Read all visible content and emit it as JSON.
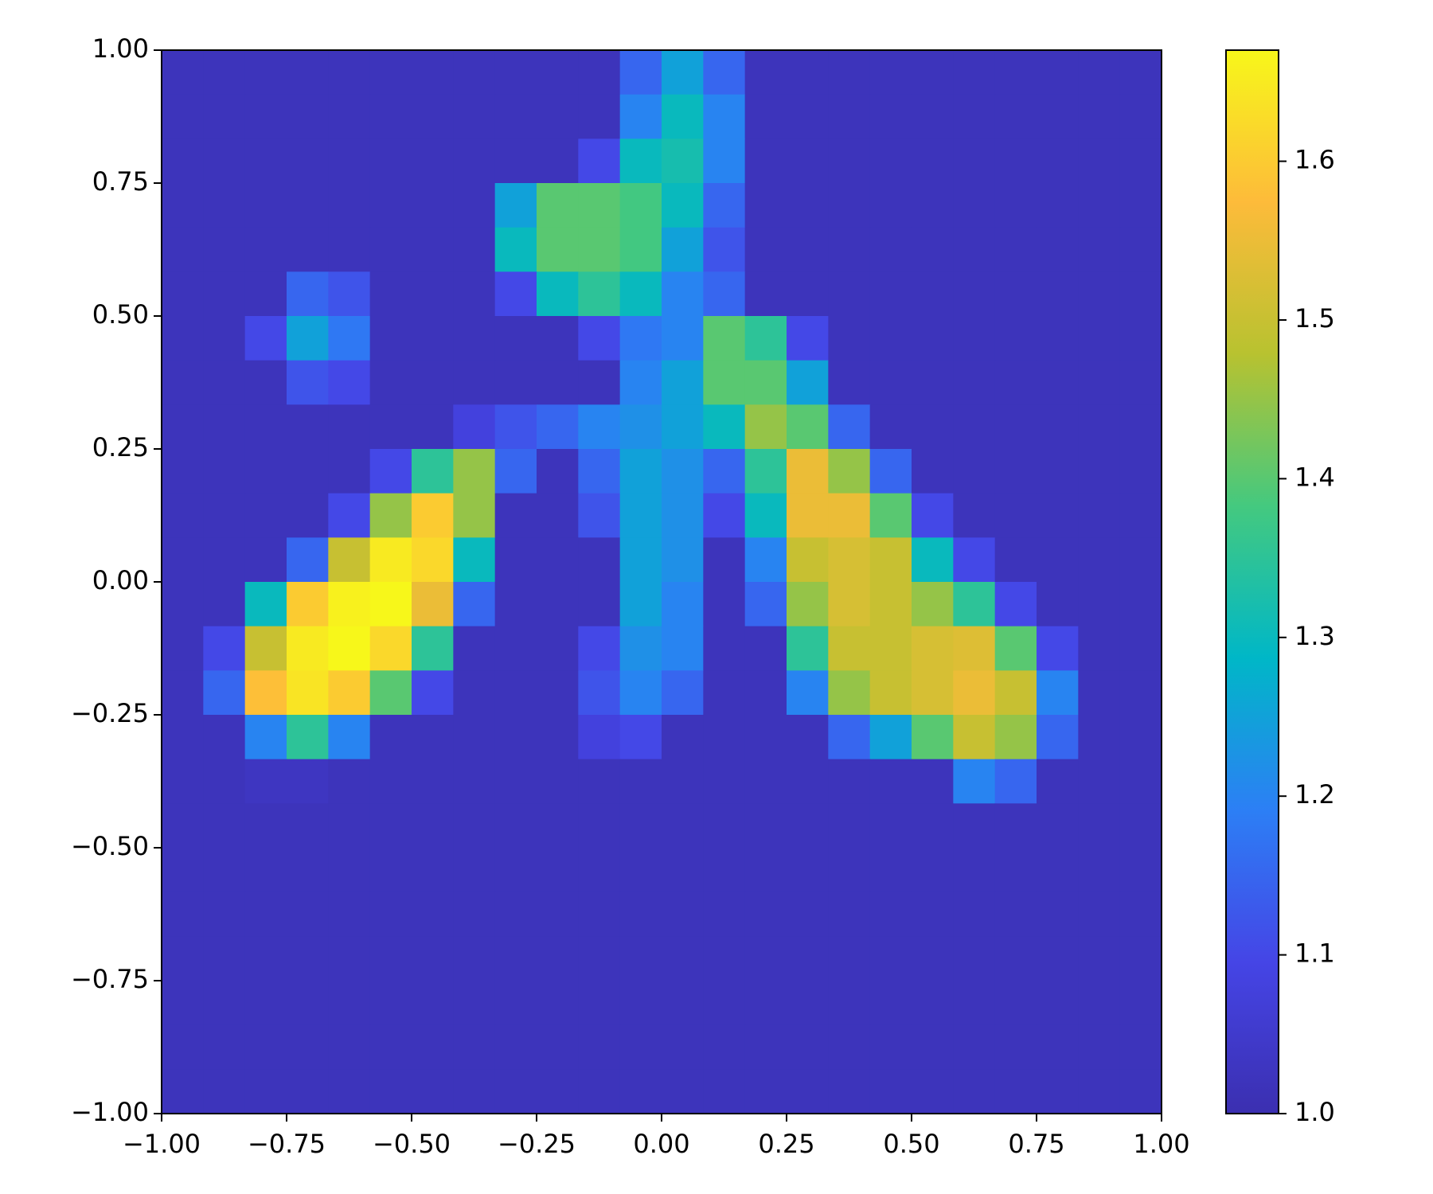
{
  "chart_data": {
    "type": "heatmap",
    "xlim": [
      -1,
      1
    ],
    "ylim": [
      -1,
      1
    ],
    "xticks": [
      {
        "value": -1,
        "label": "−1.00"
      },
      {
        "value": -0.75,
        "label": "−0.75"
      },
      {
        "value": -0.5,
        "label": "−0.50"
      },
      {
        "value": -0.25,
        "label": "−0.25"
      },
      {
        "value": 0,
        "label": "0.00"
      },
      {
        "value": 0.25,
        "label": "0.25"
      },
      {
        "value": 0.5,
        "label": "0.50"
      },
      {
        "value": 0.75,
        "label": "0.75"
      },
      {
        "value": 1,
        "label": "1.00"
      }
    ],
    "yticks": [
      {
        "value": -1,
        "label": "−1.00"
      },
      {
        "value": -0.75,
        "label": "−0.75"
      },
      {
        "value": -0.5,
        "label": "−0.50"
      },
      {
        "value": -0.25,
        "label": "−0.25"
      },
      {
        "value": 0,
        "label": "0.00"
      },
      {
        "value": 0.25,
        "label": "0.25"
      },
      {
        "value": 0.5,
        "label": "0.50"
      },
      {
        "value": 0.75,
        "label": "0.75"
      },
      {
        "value": 1,
        "label": "1.00"
      }
    ],
    "zlim": [
      1,
      1.67
    ],
    "zticks": [
      {
        "value": 1,
        "label": "1.0"
      },
      1.1,
      1.2,
      1.3,
      1.4,
      1.5,
      1.6
    ],
    "colormap": [
      "#3b2fb0",
      "#4545e6",
      "#2c7ff5",
      "#00b7c7",
      "#44c97f",
      "#b8c230",
      "#fdbb3a",
      "#f7f71a"
    ],
    "z": [
      [
        1.02,
        1.02,
        1.02,
        1.02,
        1.02,
        1.02,
        1.02,
        1.02,
        1.02,
        1.02,
        1.02,
        1.15,
        1.25,
        1.15,
        1.02,
        1.02,
        1.02,
        1.02,
        1.02,
        1.02,
        1.02,
        1.02,
        1.02,
        1.02
      ],
      [
        1.02,
        1.02,
        1.02,
        1.02,
        1.02,
        1.02,
        1.02,
        1.02,
        1.02,
        1.02,
        1.02,
        1.2,
        1.3,
        1.2,
        1.02,
        1.02,
        1.02,
        1.02,
        1.02,
        1.02,
        1.02,
        1.02,
        1.02,
        1.02
      ],
      [
        1.02,
        1.02,
        1.02,
        1.02,
        1.02,
        1.02,
        1.02,
        1.02,
        1.02,
        1.02,
        1.1,
        1.3,
        1.32,
        1.2,
        1.02,
        1.02,
        1.02,
        1.02,
        1.02,
        1.02,
        1.02,
        1.02,
        1.02,
        1.02
      ],
      [
        1.02,
        1.02,
        1.02,
        1.02,
        1.02,
        1.02,
        1.02,
        1.02,
        1.25,
        1.4,
        1.4,
        1.38,
        1.3,
        1.15,
        1.02,
        1.02,
        1.02,
        1.02,
        1.02,
        1.02,
        1.02,
        1.02,
        1.02,
        1.02
      ],
      [
        1.02,
        1.02,
        1.02,
        1.02,
        1.02,
        1.02,
        1.02,
        1.02,
        1.3,
        1.4,
        1.4,
        1.38,
        1.25,
        1.12,
        1.02,
        1.02,
        1.02,
        1.02,
        1.02,
        1.02,
        1.02,
        1.02,
        1.02,
        1.02
      ],
      [
        1.02,
        1.02,
        1.02,
        1.15,
        1.12,
        1.02,
        1.02,
        1.02,
        1.1,
        1.3,
        1.35,
        1.3,
        1.2,
        1.15,
        1.02,
        1.02,
        1.02,
        1.02,
        1.02,
        1.02,
        1.02,
        1.02,
        1.02,
        1.02
      ],
      [
        1.02,
        1.02,
        1.1,
        1.25,
        1.18,
        1.02,
        1.02,
        1.02,
        1.02,
        1.02,
        1.1,
        1.18,
        1.2,
        1.4,
        1.35,
        1.1,
        1.02,
        1.02,
        1.02,
        1.02,
        1.02,
        1.02,
        1.02,
        1.02
      ],
      [
        1.02,
        1.02,
        1.02,
        1.12,
        1.1,
        1.02,
        1.02,
        1.02,
        1.02,
        1.02,
        1.02,
        1.2,
        1.25,
        1.4,
        1.4,
        1.25,
        1.02,
        1.02,
        1.02,
        1.02,
        1.02,
        1.02,
        1.02,
        1.02
      ],
      [
        1.02,
        1.02,
        1.02,
        1.02,
        1.02,
        1.02,
        1.02,
        1.08,
        1.12,
        1.15,
        1.2,
        1.22,
        1.25,
        1.3,
        1.45,
        1.4,
        1.15,
        1.02,
        1.02,
        1.02,
        1.02,
        1.02,
        1.02,
        1.02
      ],
      [
        1.02,
        1.02,
        1.02,
        1.02,
        1.02,
        1.1,
        1.35,
        1.45,
        1.15,
        1.02,
        1.15,
        1.25,
        1.22,
        1.15,
        1.35,
        1.55,
        1.45,
        1.15,
        1.02,
        1.02,
        1.02,
        1.02,
        1.02,
        1.02
      ],
      [
        1.02,
        1.02,
        1.02,
        1.02,
        1.1,
        1.45,
        1.6,
        1.45,
        1.02,
        1.02,
        1.12,
        1.25,
        1.22,
        1.1,
        1.3,
        1.55,
        1.55,
        1.4,
        1.1,
        1.02,
        1.02,
        1.02,
        1.02,
        1.02
      ],
      [
        1.02,
        1.02,
        1.02,
        1.15,
        1.5,
        1.65,
        1.62,
        1.3,
        1.02,
        1.02,
        1.02,
        1.25,
        1.22,
        1.02,
        1.2,
        1.5,
        1.52,
        1.5,
        1.3,
        1.1,
        1.02,
        1.02,
        1.02,
        1.02
      ],
      [
        1.02,
        1.02,
        1.3,
        1.6,
        1.66,
        1.67,
        1.55,
        1.15,
        1.02,
        1.02,
        1.02,
        1.25,
        1.2,
        1.02,
        1.15,
        1.45,
        1.52,
        1.5,
        1.45,
        1.35,
        1.1,
        1.02,
        1.02,
        1.02
      ],
      [
        1.02,
        1.1,
        1.5,
        1.65,
        1.67,
        1.62,
        1.35,
        1.02,
        1.02,
        1.02,
        1.1,
        1.22,
        1.2,
        1.02,
        1.02,
        1.35,
        1.5,
        1.5,
        1.52,
        1.53,
        1.4,
        1.1,
        1.02,
        1.02
      ],
      [
        1.02,
        1.15,
        1.58,
        1.64,
        1.6,
        1.4,
        1.1,
        1.02,
        1.02,
        1.02,
        1.12,
        1.2,
        1.15,
        1.02,
        1.02,
        1.2,
        1.45,
        1.5,
        1.52,
        1.55,
        1.5,
        1.2,
        1.02,
        1.02
      ],
      [
        1.02,
        1.02,
        1.2,
        1.35,
        1.2,
        1.02,
        1.02,
        1.02,
        1.02,
        1.02,
        1.08,
        1.1,
        1.02,
        1.02,
        1.02,
        1.02,
        1.15,
        1.25,
        1.4,
        1.5,
        1.45,
        1.15,
        1.02,
        1.02
      ],
      [
        1.02,
        1.02,
        1.03,
        1.03,
        1.02,
        1.02,
        1.02,
        1.02,
        1.02,
        1.02,
        1.02,
        1.02,
        1.02,
        1.02,
        1.02,
        1.02,
        1.02,
        1.02,
        1.02,
        1.2,
        1.15,
        1.02,
        1.02,
        1.02
      ],
      [
        1.02,
        1.02,
        1.02,
        1.02,
        1.02,
        1.02,
        1.02,
        1.02,
        1.02,
        1.02,
        1.02,
        1.02,
        1.02,
        1.02,
        1.02,
        1.02,
        1.02,
        1.02,
        1.02,
        1.02,
        1.02,
        1.02,
        1.02,
        1.02
      ],
      [
        1.02,
        1.02,
        1.02,
        1.02,
        1.02,
        1.02,
        1.02,
        1.02,
        1.02,
        1.02,
        1.02,
        1.02,
        1.02,
        1.02,
        1.02,
        1.02,
        1.02,
        1.02,
        1.02,
        1.02,
        1.02,
        1.02,
        1.02,
        1.02
      ],
      [
        1.02,
        1.02,
        1.02,
        1.02,
        1.02,
        1.02,
        1.02,
        1.02,
        1.02,
        1.02,
        1.02,
        1.02,
        1.02,
        1.02,
        1.02,
        1.02,
        1.02,
        1.02,
        1.02,
        1.02,
        1.02,
        1.02,
        1.02,
        1.02
      ],
      [
        1.02,
        1.02,
        1.02,
        1.02,
        1.02,
        1.02,
        1.02,
        1.02,
        1.02,
        1.02,
        1.02,
        1.02,
        1.02,
        1.02,
        1.02,
        1.02,
        1.02,
        1.02,
        1.02,
        1.02,
        1.02,
        1.02,
        1.02,
        1.02
      ],
      [
        1.02,
        1.02,
        1.02,
        1.02,
        1.02,
        1.02,
        1.02,
        1.02,
        1.02,
        1.02,
        1.02,
        1.02,
        1.02,
        1.02,
        1.02,
        1.02,
        1.02,
        1.02,
        1.02,
        1.02,
        1.02,
        1.02,
        1.02,
        1.02
      ],
      [
        1.02,
        1.02,
        1.02,
        1.02,
        1.02,
        1.02,
        1.02,
        1.02,
        1.02,
        1.02,
        1.02,
        1.02,
        1.02,
        1.02,
        1.02,
        1.02,
        1.02,
        1.02,
        1.02,
        1.02,
        1.02,
        1.02,
        1.02,
        1.02
      ],
      [
        1.02,
        1.02,
        1.02,
        1.02,
        1.02,
        1.02,
        1.02,
        1.02,
        1.02,
        1.02,
        1.02,
        1.02,
        1.02,
        1.02,
        1.02,
        1.02,
        1.02,
        1.02,
        1.02,
        1.02,
        1.02,
        1.02,
        1.02,
        1.02
      ]
    ]
  }
}
